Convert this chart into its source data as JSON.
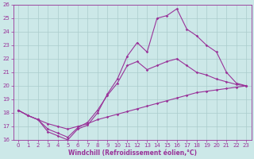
{
  "xlabel": "Windchill (Refroidissement éolien,°C)",
  "xlim": [
    -0.5,
    23.5
  ],
  "ylim": [
    16,
    26
  ],
  "xticks": [
    0,
    1,
    2,
    3,
    4,
    5,
    6,
    7,
    8,
    9,
    10,
    11,
    12,
    13,
    14,
    15,
    16,
    17,
    18,
    19,
    20,
    21,
    22,
    23
  ],
  "yticks": [
    16,
    17,
    18,
    19,
    20,
    21,
    22,
    23,
    24,
    25,
    26
  ],
  "background_color": "#cce8e8",
  "grid_color": "#aacccc",
  "line_color": "#993399",
  "line1_x": [
    0,
    1,
    2,
    3,
    4,
    5,
    6,
    7,
    8,
    9,
    10,
    11,
    12,
    13,
    14,
    15,
    16,
    17,
    18,
    19,
    20,
    21,
    22,
    23
  ],
  "line1_y": [
    18.2,
    17.8,
    17.5,
    16.6,
    16.3,
    16.0,
    16.8,
    17.1,
    18.0,
    19.4,
    20.5,
    22.2,
    23.2,
    22.5,
    25.0,
    25.2,
    25.7,
    24.2,
    23.7,
    23.0,
    22.5,
    21.0,
    20.2,
    20.0
  ],
  "line2_x": [
    0,
    1,
    2,
    3,
    4,
    5,
    6,
    7,
    8,
    9,
    10,
    11,
    12,
    13,
    14,
    15,
    16,
    17,
    18,
    19,
    20,
    21,
    22,
    23
  ],
  "line2_y": [
    18.2,
    17.8,
    17.5,
    16.8,
    16.5,
    16.2,
    16.9,
    17.3,
    18.2,
    19.3,
    20.2,
    21.5,
    21.8,
    21.2,
    21.5,
    21.8,
    22.0,
    21.5,
    21.0,
    20.8,
    20.5,
    20.3,
    20.1,
    20.0
  ],
  "line3_x": [
    0,
    1,
    2,
    3,
    4,
    5,
    6,
    7,
    8,
    9,
    10,
    11,
    12,
    13,
    14,
    15,
    16,
    17,
    18,
    19,
    20,
    21,
    22,
    23
  ],
  "line3_y": [
    18.2,
    17.8,
    17.5,
    17.2,
    17.0,
    16.8,
    17.0,
    17.2,
    17.5,
    17.7,
    17.9,
    18.1,
    18.3,
    18.5,
    18.7,
    18.9,
    19.1,
    19.3,
    19.5,
    19.6,
    19.7,
    19.8,
    19.9,
    20.0
  ],
  "tick_fontsize": 5,
  "xlabel_fontsize": 5.5,
  "marker": "D",
  "markersize": 1.8,
  "linewidth": 0.8
}
